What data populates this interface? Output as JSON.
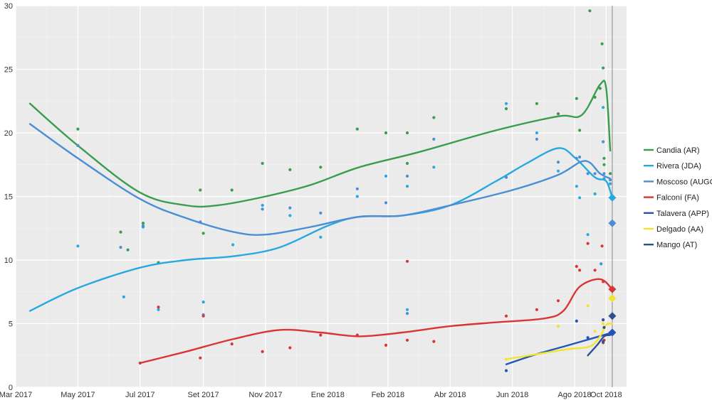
{
  "chart_data": {
    "type": "line",
    "x_kind": "date",
    "xlim": [
      "2017-03-01",
      "2018-10-21"
    ],
    "ylim": [
      0,
      30
    ],
    "y_ticks": [
      0,
      5,
      10,
      15,
      20,
      25,
      30
    ],
    "x_ticks": [
      {
        "date": "2017-03-01",
        "label": "Mar 2017"
      },
      {
        "date": "2017-05-01",
        "label": "May 2017"
      },
      {
        "date": "2017-07-01",
        "label": "Jul 2017"
      },
      {
        "date": "2017-09-01",
        "label": "Set 2017"
      },
      {
        "date": "2017-11-01",
        "label": "Nov 2017"
      },
      {
        "date": "2018-01-01",
        "label": "Ene 2018"
      },
      {
        "date": "2018-03-01",
        "label": "Feb 2018"
      },
      {
        "date": "2018-05-01",
        "label": "Abr 2018"
      },
      {
        "date": "2018-07-01",
        "label": "Jun 2018"
      },
      {
        "date": "2018-08-31",
        "label": "Ago 2018"
      },
      {
        "date": "2018-10-01",
        "label": "Oct 2018"
      }
    ],
    "election_date": "2018-10-07",
    "grid": true,
    "legend_position": "right",
    "series": [
      {
        "name": "Candia (AR)",
        "color": "#3a9c4f",
        "trend": [
          [
            "2017-03-15",
            22.3
          ],
          [
            "2017-05-01",
            19.0
          ],
          [
            "2017-07-01",
            15.3
          ],
          [
            "2017-08-15",
            14.3
          ],
          [
            "2017-09-15",
            14.3
          ],
          [
            "2017-11-01",
            15.0
          ],
          [
            "2017-12-15",
            15.9
          ],
          [
            "2018-02-01",
            17.3
          ],
          [
            "2018-04-01",
            18.5
          ],
          [
            "2018-06-15",
            20.2
          ],
          [
            "2018-08-15",
            21.3
          ],
          [
            "2018-09-07",
            21.4
          ],
          [
            "2018-09-25",
            23.8
          ],
          [
            "2018-10-01",
            23.5
          ],
          [
            "2018-10-05",
            18.6
          ]
        ],
        "points": [
          [
            "2017-05-01",
            20.3
          ],
          [
            "2017-06-12",
            12.2
          ],
          [
            "2017-06-19",
            10.8
          ],
          [
            "2017-07-04",
            12.9
          ],
          [
            "2017-07-19",
            9.8
          ],
          [
            "2017-08-29",
            15.5
          ],
          [
            "2017-09-01",
            12.1
          ],
          [
            "2017-09-29",
            15.5
          ],
          [
            "2017-10-29",
            17.6
          ],
          [
            "2017-11-25",
            17.1
          ],
          [
            "2017-12-25",
            17.3
          ],
          [
            "2018-01-30",
            20.3
          ],
          [
            "2018-02-27",
            20.0
          ],
          [
            "2018-03-20",
            20.0
          ],
          [
            "2018-03-20",
            17.6
          ],
          [
            "2018-04-15",
            21.2
          ],
          [
            "2018-06-25",
            21.9
          ],
          [
            "2018-07-25",
            22.3
          ],
          [
            "2018-08-15",
            21.5
          ],
          [
            "2018-09-02",
            22.7
          ],
          [
            "2018-09-05",
            20.2
          ],
          [
            "2018-09-15",
            29.6
          ],
          [
            "2018-09-20",
            22.8
          ],
          [
            "2018-09-25",
            23.5
          ],
          [
            "2018-09-27",
            27.0
          ],
          [
            "2018-09-28",
            25.1
          ],
          [
            "2018-09-29",
            18.0
          ],
          [
            "2018-09-29",
            17.5
          ],
          [
            "2018-10-05",
            16.8
          ]
        ],
        "final": null
      },
      {
        "name": "Rivera (JDA)",
        "color": "#29a8df",
        "trend": [
          [
            "2017-03-15",
            6.0
          ],
          [
            "2017-05-01",
            7.8
          ],
          [
            "2017-07-01",
            9.4
          ],
          [
            "2017-08-15",
            10.0
          ],
          [
            "2017-10-01",
            10.3
          ],
          [
            "2017-11-15",
            11.0
          ],
          [
            "2018-01-01",
            12.7
          ],
          [
            "2018-02-01",
            13.4
          ],
          [
            "2018-03-15",
            13.5
          ],
          [
            "2018-05-01",
            14.3
          ],
          [
            "2018-06-15",
            16.2
          ],
          [
            "2018-07-15",
            17.6
          ],
          [
            "2018-08-15",
            18.8
          ],
          [
            "2018-09-01",
            18.0
          ],
          [
            "2018-09-20",
            16.5
          ],
          [
            "2018-10-01",
            16.2
          ],
          [
            "2018-10-07",
            14.9
          ]
        ],
        "points": [
          [
            "2017-05-01",
            11.1
          ],
          [
            "2017-06-15",
            7.1
          ],
          [
            "2017-07-04",
            12.6
          ],
          [
            "2017-07-19",
            6.1
          ],
          [
            "2017-09-01",
            6.7
          ],
          [
            "2017-09-30",
            11.2
          ],
          [
            "2017-10-29",
            14.3
          ],
          [
            "2017-11-25",
            13.5
          ],
          [
            "2017-12-25",
            11.8
          ],
          [
            "2018-01-30",
            15.0
          ],
          [
            "2018-02-27",
            16.6
          ],
          [
            "2018-03-20",
            6.1
          ],
          [
            "2018-03-20",
            15.8
          ],
          [
            "2018-04-15",
            17.3
          ],
          [
            "2018-06-25",
            22.3
          ],
          [
            "2018-07-25",
            20.0
          ],
          [
            "2018-08-15",
            17.0
          ],
          [
            "2018-09-02",
            15.8
          ],
          [
            "2018-09-05",
            14.9
          ],
          [
            "2018-09-13",
            12.0
          ],
          [
            "2018-09-20",
            15.2
          ],
          [
            "2018-09-28",
            22.0
          ],
          [
            "2018-09-29",
            16.4
          ],
          [
            "2018-10-05",
            16.0
          ]
        ],
        "final": 14.9
      },
      {
        "name": "Moscoso (AUGC)",
        "color": "#4a8fd6",
        "trend": [
          [
            "2017-03-15",
            20.7
          ],
          [
            "2017-05-01",
            18.0
          ],
          [
            "2017-07-01",
            14.8
          ],
          [
            "2017-08-15",
            13.3
          ],
          [
            "2017-10-01",
            12.2
          ],
          [
            "2017-11-01",
            12.0
          ],
          [
            "2017-12-15",
            12.6
          ],
          [
            "2018-02-01",
            13.4
          ],
          [
            "2018-03-15",
            13.5
          ],
          [
            "2018-05-01",
            14.3
          ],
          [
            "2018-07-01",
            15.5
          ],
          [
            "2018-08-15",
            16.7
          ],
          [
            "2018-09-10",
            17.8
          ],
          [
            "2018-09-25",
            16.8
          ],
          [
            "2018-10-05",
            16.4
          ]
        ],
        "points": [
          [
            "2017-05-01",
            19.0
          ],
          [
            "2017-06-12",
            11.0
          ],
          [
            "2017-07-04",
            12.7
          ],
          [
            "2017-08-29",
            13.0
          ],
          [
            "2017-09-01",
            5.7
          ],
          [
            "2017-10-29",
            14.0
          ],
          [
            "2017-11-25",
            14.1
          ],
          [
            "2017-12-25",
            13.7
          ],
          [
            "2018-01-30",
            15.6
          ],
          [
            "2018-02-27",
            14.5
          ],
          [
            "2018-03-20",
            5.8
          ],
          [
            "2018-03-20",
            16.6
          ],
          [
            "2018-04-15",
            19.5
          ],
          [
            "2018-06-25",
            16.5
          ],
          [
            "2018-07-25",
            19.5
          ],
          [
            "2018-08-15",
            17.7
          ],
          [
            "2018-09-02",
            18.0
          ],
          [
            "2018-09-05",
            18.1
          ],
          [
            "2018-09-13",
            16.8
          ],
          [
            "2018-09-20",
            16.8
          ],
          [
            "2018-09-26",
            9.7
          ],
          [
            "2018-09-28",
            19.3
          ],
          [
            "2018-09-29",
            16.8
          ],
          [
            "2018-10-05",
            16.3
          ]
        ],
        "final": 12.9
      },
      {
        "name": "Falconí (FA)",
        "color": "#d93535",
        "trend": [
          [
            "2017-07-01",
            1.9
          ],
          [
            "2017-08-15",
            2.8
          ],
          [
            "2017-10-01",
            3.8
          ],
          [
            "2017-11-15",
            4.5
          ],
          [
            "2017-12-25",
            4.3
          ],
          [
            "2018-02-01",
            4.0
          ],
          [
            "2018-03-15",
            4.3
          ],
          [
            "2018-05-01",
            4.8
          ],
          [
            "2018-06-15",
            5.1
          ],
          [
            "2018-08-01",
            5.4
          ],
          [
            "2018-08-20",
            6.0
          ],
          [
            "2018-09-05",
            7.9
          ],
          [
            "2018-09-25",
            8.5
          ],
          [
            "2018-10-07",
            7.7
          ]
        ],
        "points": [
          [
            "2017-07-01",
            1.9
          ],
          [
            "2017-07-19",
            6.3
          ],
          [
            "2017-08-29",
            2.3
          ],
          [
            "2017-09-01",
            5.6
          ],
          [
            "2017-09-29",
            3.4
          ],
          [
            "2017-10-29",
            2.8
          ],
          [
            "2017-11-25",
            3.1
          ],
          [
            "2017-12-25",
            4.1
          ],
          [
            "2018-01-30",
            4.1
          ],
          [
            "2018-02-27",
            3.3
          ],
          [
            "2018-03-20",
            3.7
          ],
          [
            "2018-03-20",
            9.9
          ],
          [
            "2018-04-15",
            3.6
          ],
          [
            "2018-06-25",
            5.6
          ],
          [
            "2018-07-25",
            6.1
          ],
          [
            "2018-08-15",
            6.8
          ],
          [
            "2018-09-02",
            9.5
          ],
          [
            "2018-09-05",
            9.2
          ],
          [
            "2018-09-13",
            11.3
          ],
          [
            "2018-09-20",
            9.2
          ],
          [
            "2018-09-27",
            11.1
          ],
          [
            "2018-09-28",
            8.3
          ],
          [
            "2018-09-28",
            3.5
          ],
          [
            "2018-09-29",
            3.7
          ]
        ],
        "final": 7.7
      },
      {
        "name": "Talavera (APP)",
        "color": "#2255b8",
        "trend": [
          [
            "2018-06-25",
            1.8
          ],
          [
            "2018-07-25",
            2.6
          ],
          [
            "2018-08-25",
            3.3
          ],
          [
            "2018-09-20",
            3.9
          ],
          [
            "2018-10-07",
            4.3
          ]
        ],
        "points": [
          [
            "2018-06-25",
            1.3
          ],
          [
            "2018-09-02",
            5.2
          ],
          [
            "2018-09-13",
            3.9
          ],
          [
            "2018-09-28",
            3.6
          ]
        ],
        "final": 4.3
      },
      {
        "name": "Delgado (AA)",
        "color": "#f2e42e",
        "trend": [
          [
            "2018-06-25",
            2.2
          ],
          [
            "2018-07-25",
            2.6
          ],
          [
            "2018-08-25",
            3.0
          ],
          [
            "2018-09-15",
            3.2
          ],
          [
            "2018-09-25",
            4.0
          ],
          [
            "2018-10-01",
            4.9
          ],
          [
            "2018-10-07",
            5.0
          ]
        ],
        "points": [
          [
            "2018-06-25",
            2.2
          ],
          [
            "2018-08-15",
            4.8
          ],
          [
            "2018-09-13",
            6.4
          ],
          [
            "2018-09-20",
            4.4
          ],
          [
            "2018-09-28",
            5.0
          ]
        ],
        "final": 7.0
      },
      {
        "name": "Mango (AT)",
        "color": "#2f4f8f",
        "trend": [
          [
            "2018-09-13",
            2.5
          ],
          [
            "2018-09-22",
            3.3
          ],
          [
            "2018-09-29",
            4.0
          ],
          [
            "2018-10-05",
            4.1
          ]
        ],
        "points": [
          [
            "2018-09-28",
            5.3
          ],
          [
            "2018-09-29",
            4.7
          ]
        ],
        "final": 5.6
      }
    ]
  }
}
